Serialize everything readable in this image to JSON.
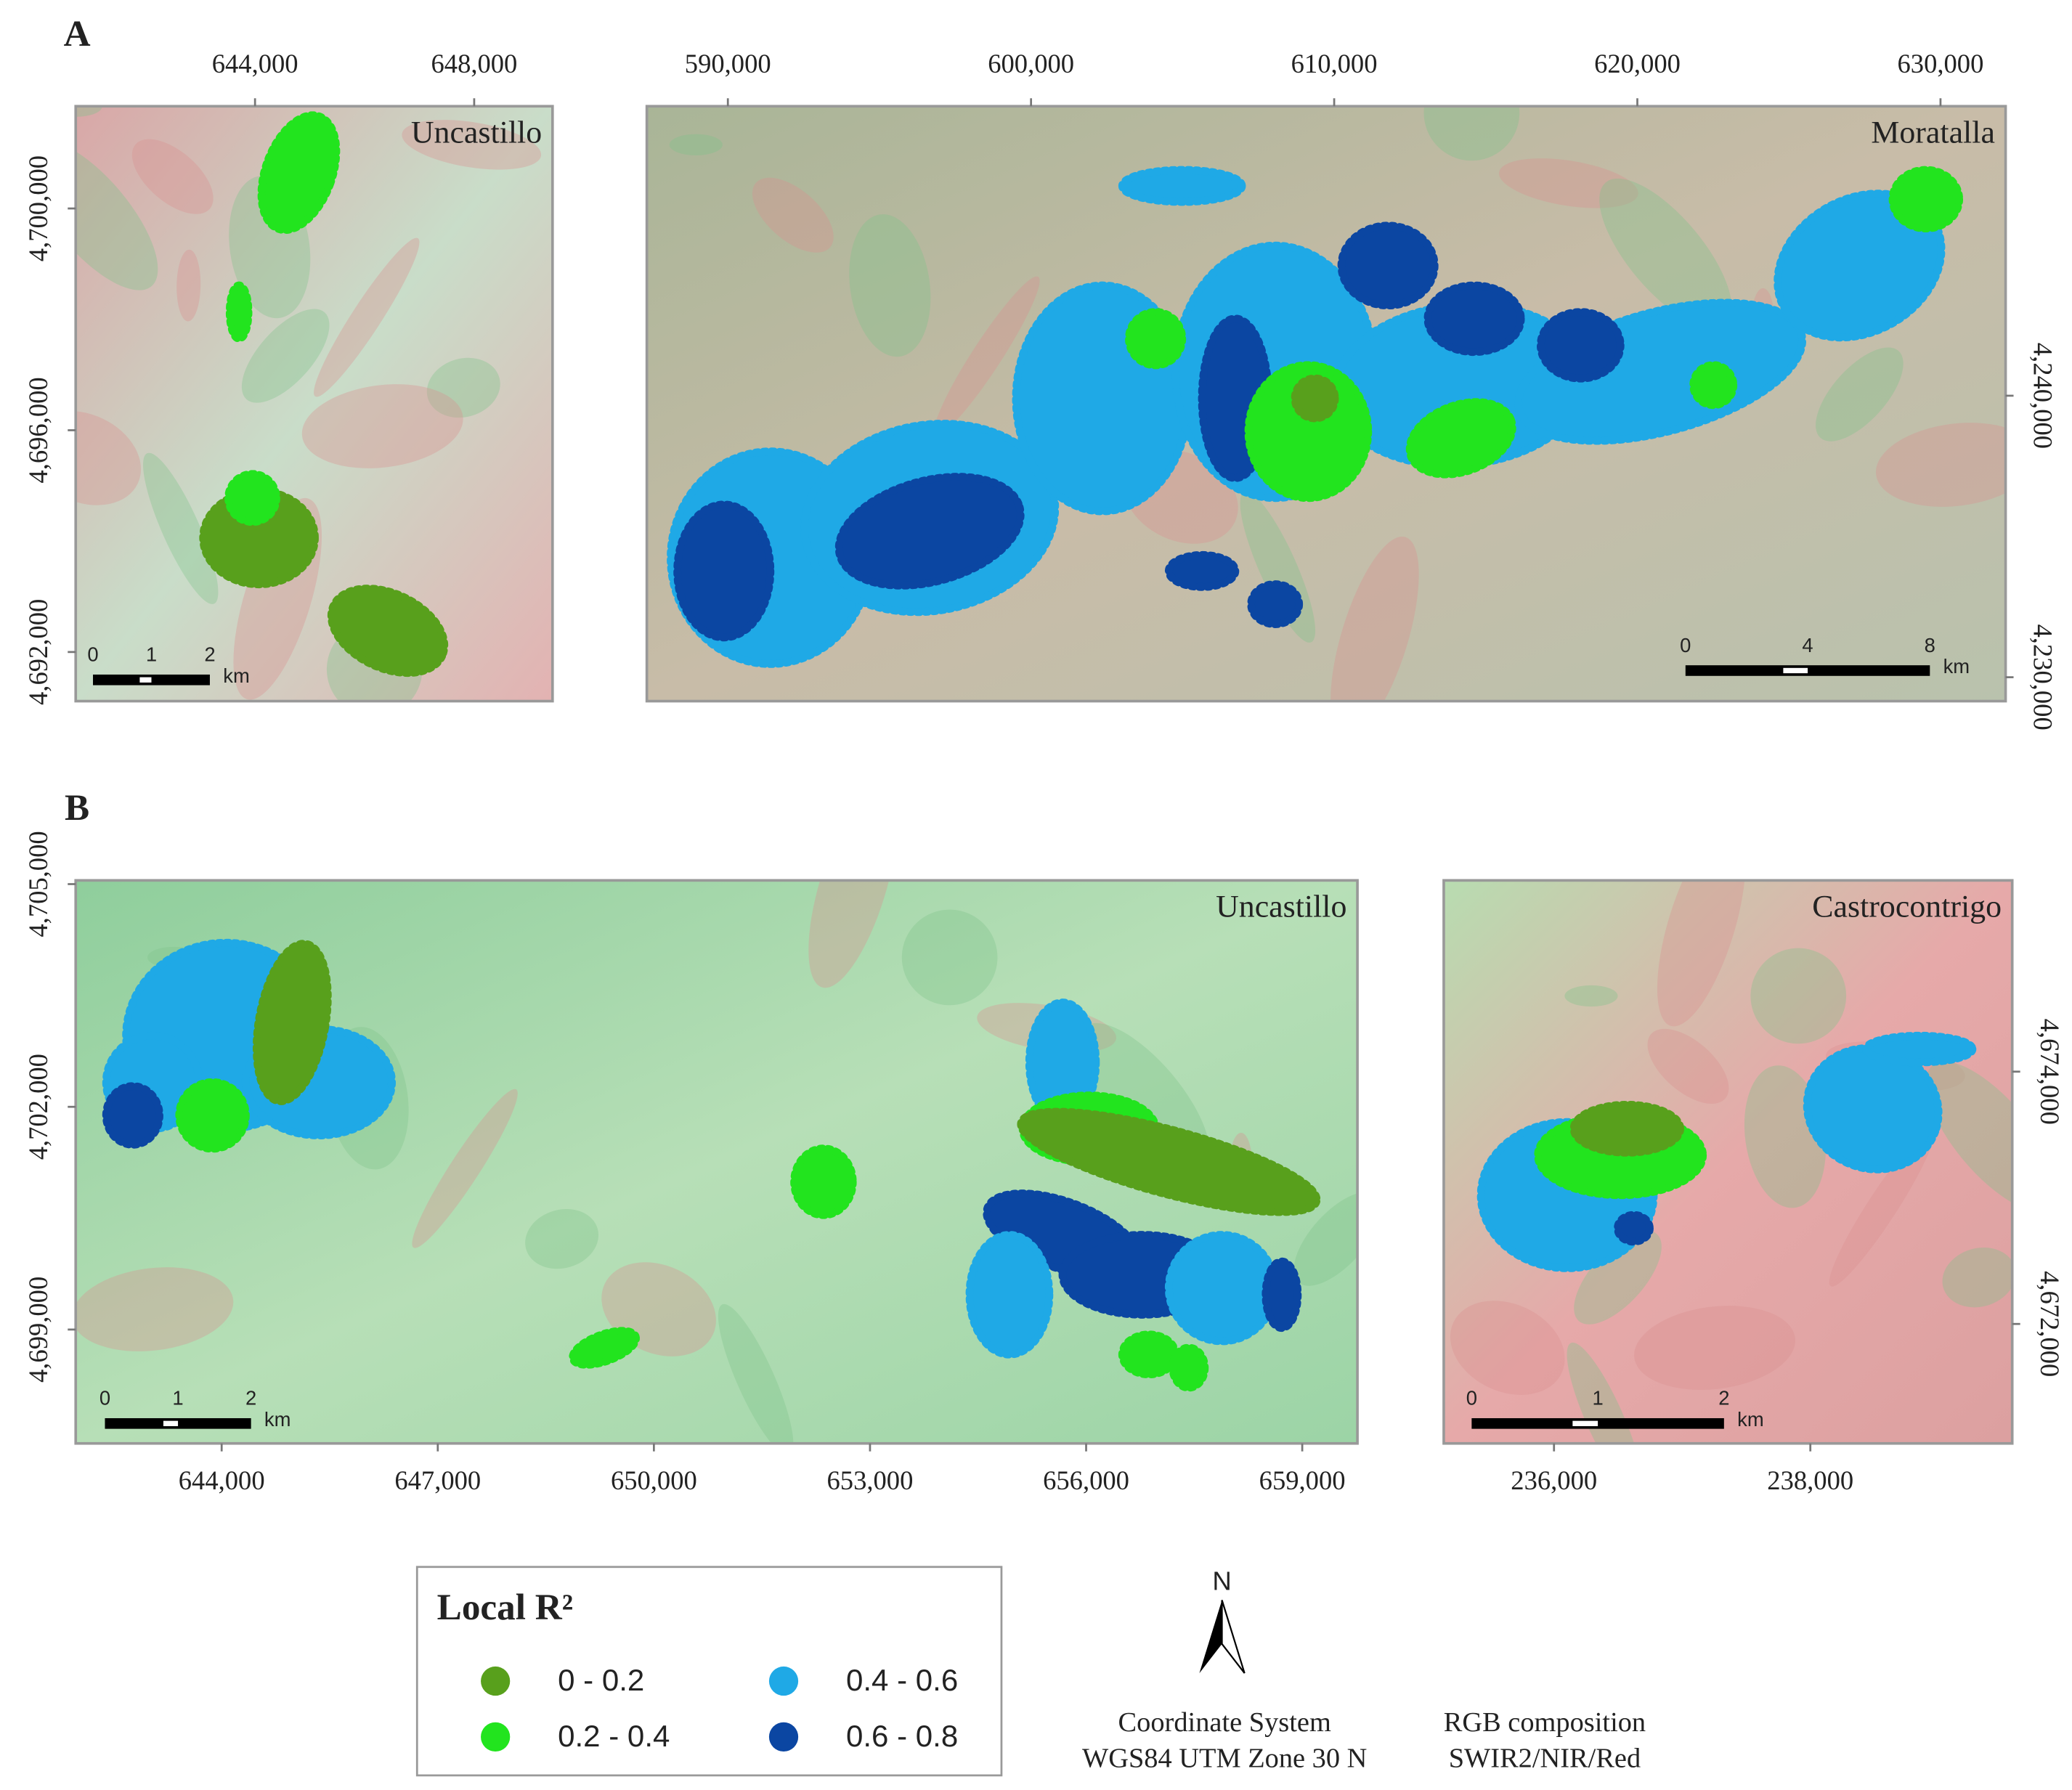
{
  "panel_labels": [
    "A",
    "B"
  ],
  "maps": [
    {
      "name": "Uncastillo",
      "panel": 0,
      "x_axis": "top",
      "y_axis": "left",
      "xlim": [
        640727,
        649430
      ],
      "ylim": [
        4691114,
        4701844
      ],
      "xticks": [
        {
          "value": 644000,
          "label": "644,000"
        },
        {
          "value": 648000,
          "label": "648,000"
        }
      ],
      "yticks": [
        {
          "value": 4692000,
          "label": "4,692,000"
        },
        {
          "value": 4696000,
          "label": "4,696,000"
        },
        {
          "value": 4700000,
          "label": "4,700,000"
        }
      ],
      "scale_bar": {
        "ticks": [
          0,
          1,
          2
        ],
        "unit": "km"
      }
    },
    {
      "name": "Moratalla",
      "panel": 0,
      "x_axis": "top",
      "y_axis": "right",
      "xlim": [
        587327,
        632147
      ],
      "ylim": [
        4229151,
        4250283
      ],
      "xticks": [
        {
          "value": 590000,
          "label": "590,000"
        },
        {
          "value": 600000,
          "label": "600,000"
        },
        {
          "value": 610000,
          "label": "610,000"
        },
        {
          "value": 620000,
          "label": "620,000"
        },
        {
          "value": 630000,
          "label": "630,000"
        }
      ],
      "yticks": [
        {
          "value": 4230000,
          "label": "4,230,000"
        },
        {
          "value": 4240000,
          "label": "4,240,000"
        }
      ],
      "scale_bar": {
        "ticks": [
          0,
          4,
          8
        ],
        "unit": "km"
      }
    },
    {
      "name": "Uncastillo",
      "panel": 1,
      "x_axis": "bottom",
      "y_axis": "left",
      "xlim": [
        641974,
        659766
      ],
      "ylim": [
        4697466,
        4705050
      ],
      "xticks": [
        {
          "value": 644000,
          "label": "644,000"
        },
        {
          "value": 647000,
          "label": "647,000"
        },
        {
          "value": 650000,
          "label": "650,000"
        },
        {
          "value": 653000,
          "label": "653,000"
        },
        {
          "value": 656000,
          "label": "656,000"
        },
        {
          "value": 659000,
          "label": "659,000"
        }
      ],
      "yticks": [
        {
          "value": 4699000,
          "label": "4,699,000"
        },
        {
          "value": 4702000,
          "label": "4,702,000"
        },
        {
          "value": 4705000,
          "label": "4,705,000"
        }
      ],
      "scale_bar": {
        "ticks": [
          0,
          1,
          2
        ],
        "unit": "km"
      }
    },
    {
      "name": "Castrocontrigo",
      "panel": 1,
      "x_axis": "bottom",
      "y_axis": "right",
      "xlim": [
        235140,
        239575
      ],
      "ylim": [
        4671053,
        4675516
      ],
      "xticks": [
        {
          "value": 236000,
          "label": "236,000"
        },
        {
          "value": 238000,
          "label": "238,000"
        }
      ],
      "yticks": [
        {
          "value": 4672000,
          "label": "4,672,000"
        },
        {
          "value": 4674000,
          "label": "4,674,000"
        }
      ],
      "scale_bar": {
        "ticks": [
          0,
          1,
          2
        ],
        "unit": "km"
      }
    }
  ],
  "legend": {
    "title": "Local R²",
    "items": [
      {
        "label": "0 - 0.2",
        "color": "#58a01c"
      },
      {
        "label": "0.2 - 0.4",
        "color": "#22e41e"
      },
      {
        "label": "0.4 - 0.6",
        "color": "#1fa9e6"
      },
      {
        "label": "0.6 - 0.8",
        "color": "#0b46a2"
      }
    ]
  },
  "north_arrow": "N",
  "notes": [
    [
      "Coordinate System",
      "WGS84 UTM Zone 30 N"
    ],
    [
      "RGB composition",
      "SWIR2/NIR/Red"
    ]
  ]
}
